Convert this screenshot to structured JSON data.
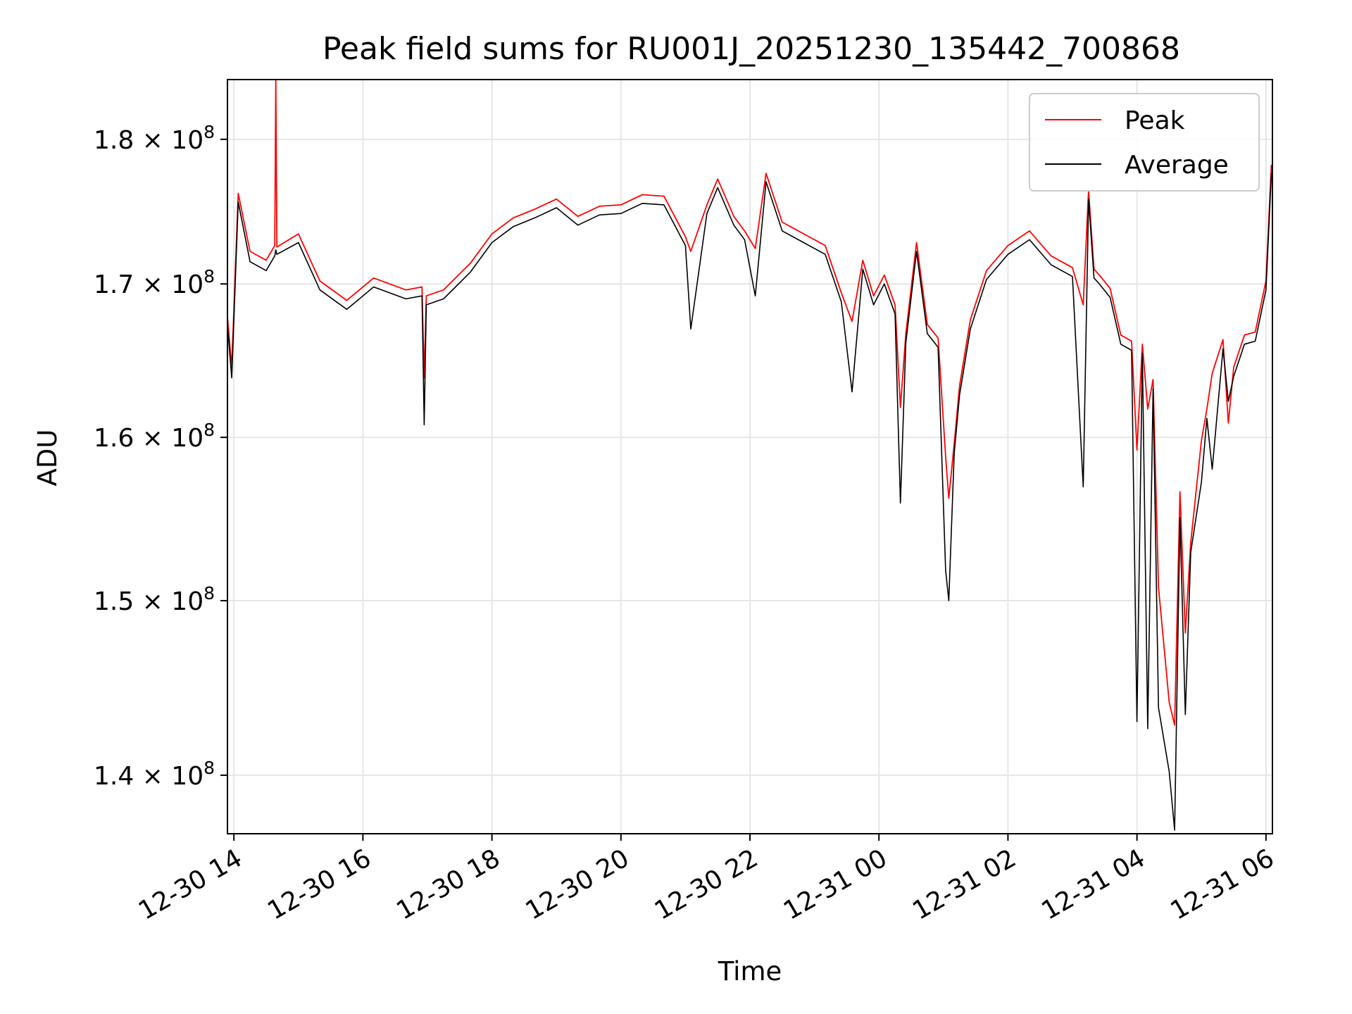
{
  "chart_data": {
    "type": "line",
    "title": "Peak field sums for RU001J_20251230_135442_700868",
    "xlabel": "Time",
    "ylabel": "ADU",
    "y_scale": "log",
    "xlim": [
      "2025-12-30 13:54",
      "2025-12-31 06:06"
    ],
    "ylim": [
      136800000,
      184300000
    ],
    "grid": true,
    "legend_position": "top-right",
    "x_ticks": [
      {
        "value": "2025-12-30 14:00",
        "label": "12-30 14"
      },
      {
        "value": "2025-12-30 16:00",
        "label": "12-30 16"
      },
      {
        "value": "2025-12-30 18:00",
        "label": "12-30 18"
      },
      {
        "value": "2025-12-30 20:00",
        "label": "12-30 20"
      },
      {
        "value": "2025-12-30 22:00",
        "label": "12-30 22"
      },
      {
        "value": "2025-12-31 00:00",
        "label": "12-31 00"
      },
      {
        "value": "2025-12-31 02:00",
        "label": "12-31 02"
      },
      {
        "value": "2025-12-31 04:00",
        "label": "12-31 04"
      },
      {
        "value": "2025-12-31 06:00",
        "label": "12-31 06"
      }
    ],
    "y_ticks": [
      {
        "value": 140000000,
        "mantissa": "1.4",
        "exponent": "8"
      },
      {
        "value": 150000000,
        "mantissa": "1.5",
        "exponent": "8"
      },
      {
        "value": 160000000,
        "mantissa": "1.6",
        "exponent": "8"
      },
      {
        "value": 170000000,
        "mantissa": "1.7",
        "exponent": "8"
      },
      {
        "value": 180000000,
        "mantissa": "1.8",
        "exponent": "8"
      }
    ],
    "x": [
      "2025-12-30 13:54",
      "2025-12-30 13:58",
      "2025-12-30 14:04",
      "2025-12-30 14:15",
      "2025-12-30 14:30",
      "2025-12-30 14:38",
      "2025-12-30 14:39",
      "2025-12-30 14:40",
      "2025-12-30 15:00",
      "2025-12-30 15:20",
      "2025-12-30 15:45",
      "2025-12-30 16:10",
      "2025-12-30 16:40",
      "2025-12-30 16:55",
      "2025-12-30 16:57",
      "2025-12-30 16:59",
      "2025-12-30 17:15",
      "2025-12-30 17:40",
      "2025-12-30 18:00",
      "2025-12-30 18:20",
      "2025-12-30 18:40",
      "2025-12-30 19:00",
      "2025-12-30 19:20",
      "2025-12-30 19:40",
      "2025-12-30 20:00",
      "2025-12-30 20:20",
      "2025-12-30 20:40",
      "2025-12-30 21:00",
      "2025-12-30 21:05",
      "2025-12-30 21:20",
      "2025-12-30 21:30",
      "2025-12-30 21:45",
      "2025-12-30 21:55",
      "2025-12-30 22:05",
      "2025-12-30 22:15",
      "2025-12-30 22:30",
      "2025-12-30 22:50",
      "2025-12-30 23:10",
      "2025-12-30 23:25",
      "2025-12-30 23:35",
      "2025-12-30 23:45",
      "2025-12-30 23:55",
      "2025-12-31 00:05",
      "2025-12-31 00:15",
      "2025-12-31 00:20",
      "2025-12-31 00:25",
      "2025-12-31 00:35",
      "2025-12-31 00:45",
      "2025-12-31 00:55",
      "2025-12-31 01:02",
      "2025-12-31 01:05",
      "2025-12-31 01:10",
      "2025-12-31 01:15",
      "2025-12-31 01:25",
      "2025-12-31 01:40",
      "2025-12-31 02:00",
      "2025-12-31 02:20",
      "2025-12-31 02:40",
      "2025-12-31 03:00",
      "2025-12-31 03:10",
      "2025-12-31 03:15",
      "2025-12-31 03:20",
      "2025-12-31 03:25",
      "2025-12-31 03:35",
      "2025-12-31 03:45",
      "2025-12-31 03:55",
      "2025-12-31 04:00",
      "2025-12-31 04:05",
      "2025-12-31 04:10",
      "2025-12-31 04:15",
      "2025-12-31 04:20",
      "2025-12-31 04:30",
      "2025-12-31 04:35",
      "2025-12-31 04:40",
      "2025-12-31 04:45",
      "2025-12-31 04:50",
      "2025-12-31 05:00",
      "2025-12-31 05:05",
      "2025-12-31 05:10",
      "2025-12-31 05:20",
      "2025-12-31 05:25",
      "2025-12-31 05:30",
      "2025-12-31 05:40",
      "2025-12-31 05:50",
      "2025-12-31 06:00",
      "2025-12-31 06:05"
    ],
    "series": [
      {
        "name": "Peak",
        "color": "#ff0000",
        "values": [
          167800000,
          164500000,
          176200000,
          172200000,
          171600000,
          172600000,
          184300000,
          172500000,
          173400000,
          170200000,
          168900000,
          170400000,
          169600000,
          169800000,
          163800000,
          169200000,
          169600000,
          171400000,
          173400000,
          174500000,
          175100000,
          175800000,
          174600000,
          175300000,
          175400000,
          176100000,
          176000000,
          173200000,
          172200000,
          175400000,
          177200000,
          174600000,
          173600000,
          172400000,
          177600000,
          174200000,
          173400000,
          172600000,
          169400000,
          167500000,
          171600000,
          169200000,
          170600000,
          168600000,
          161900000,
          166700000,
          172800000,
          167300000,
          166400000,
          158800000,
          156200000,
          159600000,
          163300000,
          167600000,
          170900000,
          172600000,
          173600000,
          171900000,
          171100000,
          168600000,
          176400000,
          171000000,
          170600000,
          169700000,
          166600000,
          166200000,
          159200000,
          166000000,
          161800000,
          163700000,
          150800000,
          144100000,
          142800000,
          156600000,
          148100000,
          153500000,
          159800000,
          161800000,
          164100000,
          166300000,
          160900000,
          164500000,
          166600000,
          166800000,
          170200000,
          178200000
        ]
      },
      {
        "name": "Average",
        "color": "#000000",
        "values": [
          167300000,
          163800000,
          175600000,
          171500000,
          170900000,
          171900000,
          172300000,
          172000000,
          172800000,
          169600000,
          168300000,
          169800000,
          169000000,
          169200000,
          160800000,
          168600000,
          169000000,
          170800000,
          172800000,
          173900000,
          174500000,
          175200000,
          174000000,
          174700000,
          174800000,
          175500000,
          175400000,
          172600000,
          167000000,
          174800000,
          176600000,
          174000000,
          173000000,
          169200000,
          177000000,
          173600000,
          172800000,
          172000000,
          168800000,
          162900000,
          171000000,
          168600000,
          170000000,
          168000000,
          155900000,
          166100000,
          172200000,
          166700000,
          165800000,
          151800000,
          150000000,
          159000000,
          162700000,
          167000000,
          170300000,
          172000000,
          173000000,
          171300000,
          170500000,
          156900000,
          175800000,
          170400000,
          170000000,
          169100000,
          166000000,
          165600000,
          143000000,
          165400000,
          142600000,
          163100000,
          143800000,
          140200000,
          137000000,
          155000000,
          143400000,
          152900000,
          157200000,
          161200000,
          158000000,
          165700000,
          162300000,
          163900000,
          166000000,
          166200000,
          169600000,
          177600000
        ]
      }
    ]
  }
}
